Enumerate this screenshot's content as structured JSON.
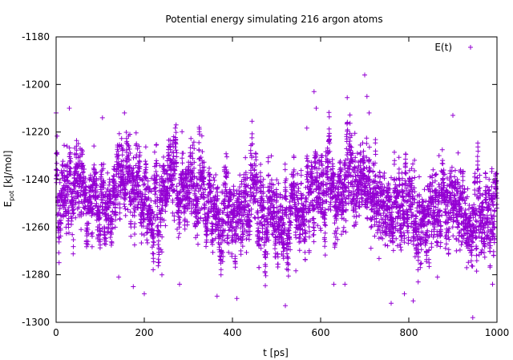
{
  "chart_data": {
    "type": "scatter",
    "title": "Potential energy simulating 216 argon atoms",
    "xlabel": "t [ps]",
    "ylabel": {
      "main": "E",
      "subscript": "pot",
      "unit": " [kJ/mol]"
    },
    "xlim": [
      0,
      1000
    ],
    "ylim": [
      -1300,
      -1180
    ],
    "x_ticks": [
      "0",
      "200",
      "400",
      "600",
      "800",
      "1000"
    ],
    "y_ticks": [
      "-1300",
      "-1280",
      "-1260",
      "-1240",
      "-1220",
      "-1200",
      "-1180"
    ],
    "grid": false,
    "legend_position": "top-right",
    "series": [
      {
        "name": "E(t)",
        "color": "#9400d3",
        "marker": "plus",
        "sampling_interval_ps": 0.2,
        "n_points": 5000,
        "mean": -1247,
        "std": 11,
        "outliers": [
          {
            "x": 0,
            "y": -1212
          },
          {
            "x": 30,
            "y": -1210
          },
          {
            "x": 105,
            "y": -1214
          },
          {
            "x": 142,
            "y": -1281
          },
          {
            "x": 155,
            "y": -1212
          },
          {
            "x": 175,
            "y": -1285
          },
          {
            "x": 200,
            "y": -1288
          },
          {
            "x": 240,
            "y": -1280
          },
          {
            "x": 280,
            "y": -1284
          },
          {
            "x": 365,
            "y": -1289
          },
          {
            "x": 410,
            "y": -1290
          },
          {
            "x": 520,
            "y": -1293
          },
          {
            "x": 585,
            "y": -1203
          },
          {
            "x": 590,
            "y": -1210
          },
          {
            "x": 630,
            "y": -1284
          },
          {
            "x": 655,
            "y": -1284
          },
          {
            "x": 700,
            "y": -1196
          },
          {
            "x": 705,
            "y": -1205
          },
          {
            "x": 710,
            "y": -1212
          },
          {
            "x": 760,
            "y": -1292
          },
          {
            "x": 790,
            "y": -1288
          },
          {
            "x": 810,
            "y": -1291
          },
          {
            "x": 865,
            "y": -1281
          },
          {
            "x": 900,
            "y": -1213
          },
          {
            "x": 945,
            "y": -1298
          },
          {
            "x": 990,
            "y": -1284
          }
        ]
      }
    ]
  }
}
